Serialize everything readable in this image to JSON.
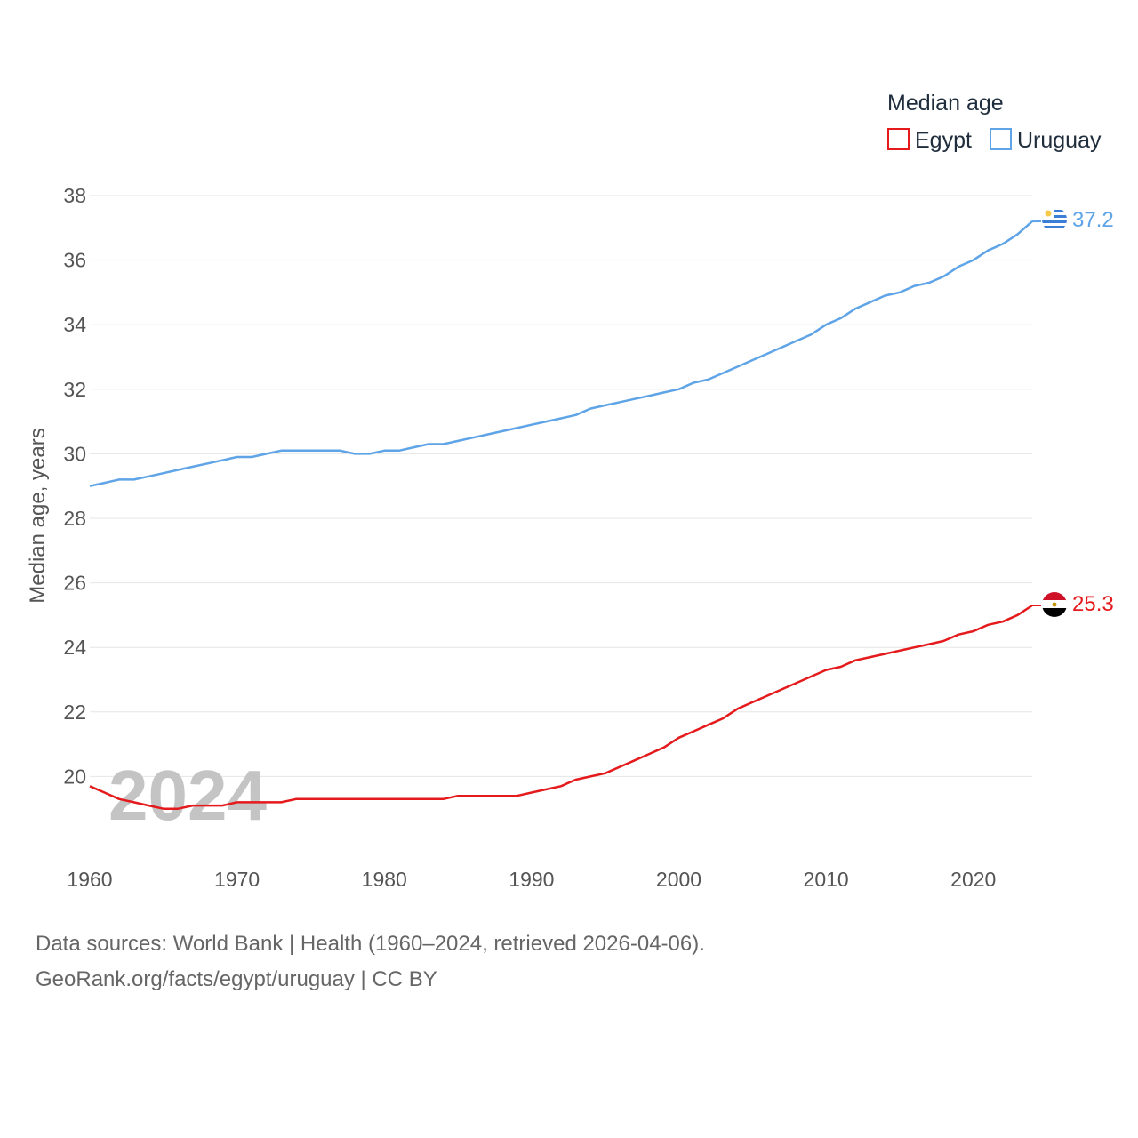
{
  "chart_data": {
    "type": "line",
    "title": "",
    "xlabel": "",
    "ylabel": "Median age, years",
    "xlim": [
      1960,
      2024
    ],
    "ylim": [
      18,
      38
    ],
    "yticks": [
      20,
      22,
      24,
      26,
      28,
      30,
      32,
      34,
      36,
      38
    ],
    "xticks": [
      1960,
      1970,
      1980,
      1990,
      2000,
      2010,
      2020
    ],
    "legend_title": "Median age",
    "legend_position": "top-right",
    "current_year": "2024",
    "x": [
      1960,
      1961,
      1962,
      1963,
      1964,
      1965,
      1966,
      1967,
      1968,
      1969,
      1970,
      1971,
      1972,
      1973,
      1974,
      1975,
      1976,
      1977,
      1978,
      1979,
      1980,
      1981,
      1982,
      1983,
      1984,
      1985,
      1986,
      1987,
      1988,
      1989,
      1990,
      1991,
      1992,
      1993,
      1994,
      1995,
      1996,
      1997,
      1998,
      1999,
      2000,
      2001,
      2002,
      2003,
      2004,
      2005,
      2006,
      2007,
      2008,
      2009,
      2010,
      2011,
      2012,
      2013,
      2014,
      2015,
      2016,
      2017,
      2018,
      2019,
      2020,
      2021,
      2022,
      2023,
      2024
    ],
    "series": [
      {
        "name": "Egypt",
        "color": "#e41a1c",
        "end_label": "25.3",
        "flag": "egypt-flag",
        "values": [
          19.7,
          19.5,
          19.3,
          19.2,
          19.1,
          19.0,
          19.0,
          19.1,
          19.1,
          19.1,
          19.2,
          19.2,
          19.2,
          19.2,
          19.3,
          19.3,
          19.3,
          19.3,
          19.3,
          19.3,
          19.3,
          19.3,
          19.3,
          19.3,
          19.3,
          19.4,
          19.4,
          19.4,
          19.4,
          19.4,
          19.5,
          19.6,
          19.7,
          19.9,
          20.0,
          20.1,
          20.3,
          20.5,
          20.7,
          20.9,
          21.2,
          21.4,
          21.6,
          21.8,
          22.1,
          22.3,
          22.5,
          22.7,
          22.9,
          23.1,
          23.3,
          23.4,
          23.6,
          23.7,
          23.8,
          23.9,
          24.0,
          24.1,
          24.2,
          24.4,
          24.5,
          24.7,
          24.8,
          25.0,
          25.3
        ]
      },
      {
        "name": "Uruguay",
        "color": "#5ea4e6",
        "end_label": "37.2",
        "flag": "uruguay-flag",
        "values": [
          29.0,
          29.1,
          29.2,
          29.2,
          29.3,
          29.4,
          29.5,
          29.6,
          29.7,
          29.8,
          29.9,
          29.9,
          30.0,
          30.1,
          30.1,
          30.1,
          30.1,
          30.1,
          30.0,
          30.0,
          30.1,
          30.1,
          30.2,
          30.3,
          30.3,
          30.4,
          30.5,
          30.6,
          30.7,
          30.8,
          30.9,
          31.0,
          31.1,
          31.2,
          31.4,
          31.5,
          31.6,
          31.7,
          31.8,
          31.9,
          32.0,
          32.2,
          32.3,
          32.5,
          32.7,
          32.9,
          33.1,
          33.3,
          33.5,
          33.7,
          34.0,
          34.2,
          34.5,
          34.7,
          34.9,
          35.0,
          35.2,
          35.3,
          35.5,
          35.8,
          36.0,
          36.3,
          36.5,
          36.8,
          37.2
        ]
      }
    ]
  },
  "source": {
    "line1": "Data sources: World Bank | Health (1960–2024, retrieved 2026-04-06).",
    "line2": "GeoRank.org/facts/egypt/uruguay | CC BY"
  }
}
